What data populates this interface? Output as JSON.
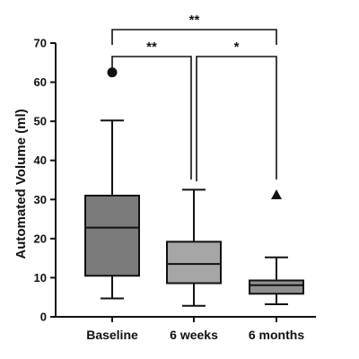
{
  "chart_data": {
    "type": "box",
    "title": "",
    "xlabel": "",
    "ylabel": "Automated Volume (ml)",
    "ylim": [
      0,
      70
    ],
    "yticks": [
      0,
      10,
      20,
      30,
      40,
      50,
      60,
      70
    ],
    "categories": [
      "Baseline",
      "6 weeks",
      "6 months"
    ],
    "boxes": [
      {
        "category": "Baseline",
        "min": 4.7,
        "q1": 10.5,
        "median": 22.8,
        "q3": 31.0,
        "max": 50.2,
        "outliers": [
          62.5
        ],
        "outlier_marker": "circle",
        "color": "#7a7a7a"
      },
      {
        "category": "6 weeks",
        "min": 2.8,
        "q1": 8.6,
        "median": 13.5,
        "q3": 19.2,
        "max": 32.5,
        "outliers": [],
        "outlier_marker": "",
        "color": "#a6a6a6"
      },
      {
        "category": "6 months",
        "min": 3.2,
        "q1": 5.9,
        "median": 8.1,
        "q3": 9.3,
        "max": 15.2,
        "outliers": [
          31.2
        ],
        "outlier_marker": "triangle",
        "color": "#8f8f8f"
      }
    ],
    "significance": [
      {
        "from": "Baseline",
        "to": "6 months",
        "label": "**"
      },
      {
        "from": "Baseline",
        "to": "6 weeks",
        "label": "**"
      },
      {
        "from": "6 weeks",
        "to": "6 months",
        "label": "*"
      }
    ]
  }
}
